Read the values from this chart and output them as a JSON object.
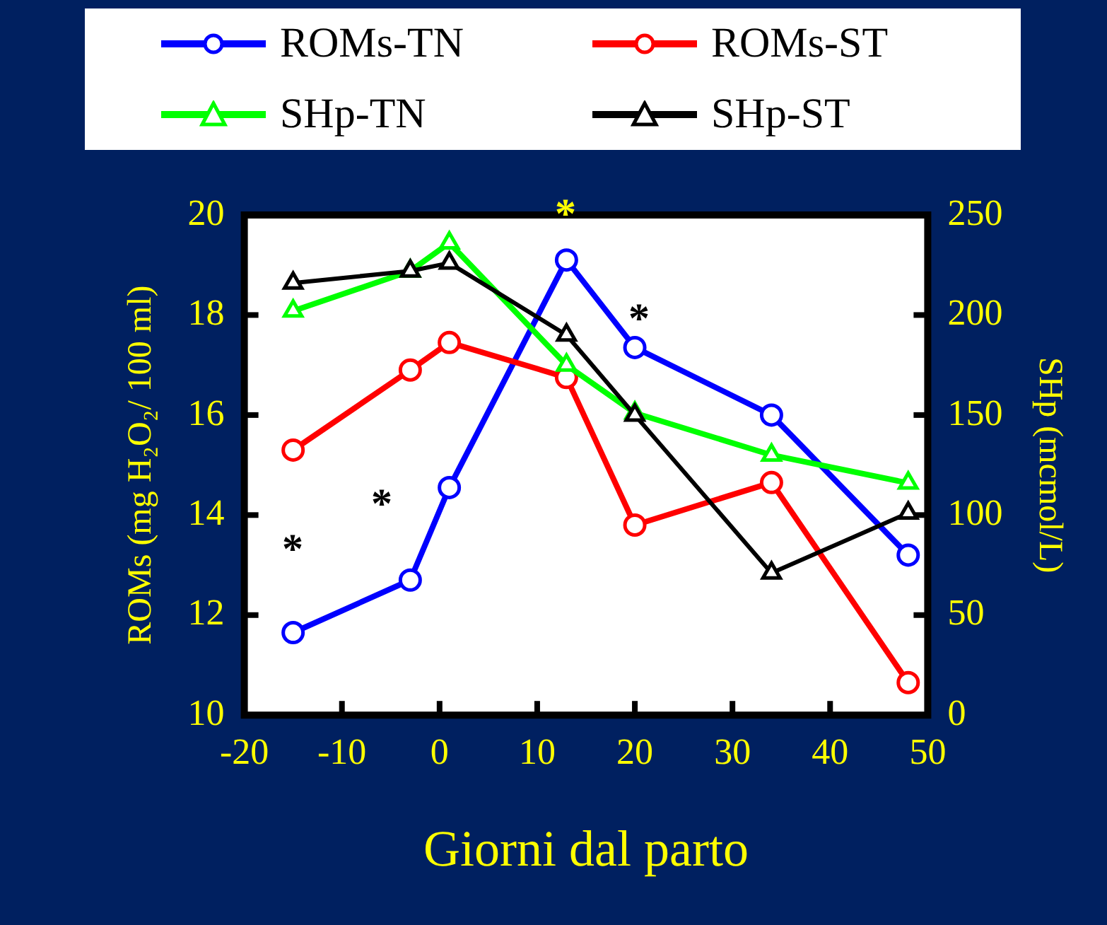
{
  "chart_data": {
    "type": "line",
    "xlabel": "Giorni dal parto",
    "ylabel": "ROMs (mg H₂O₂/ 100 ml)",
    "y2label": "SHp (mcmol/L)",
    "x": [
      -15,
      -3,
      1,
      13,
      20,
      34,
      48
    ],
    "xlim": [
      -20,
      50
    ],
    "xticks": [
      -20,
      -10,
      0,
      10,
      20,
      30,
      40,
      50
    ],
    "ylim": [
      10,
      20
    ],
    "yticks": [
      10,
      12,
      14,
      16,
      18,
      20
    ],
    "y2lim": [
      0,
      250
    ],
    "y2ticks": [
      0,
      50,
      100,
      150,
      200,
      250
    ],
    "legend": "top",
    "line_style": "solid",
    "series": [
      {
        "name": "ROMs-TN",
        "color": "#0000ff",
        "marker": "circle",
        "values": [
          11.65,
          12.7,
          14.55,
          19.1,
          17.35,
          16.0,
          13.2
        ]
      },
      {
        "name": "ROMs-ST",
        "color": "#ff0000",
        "marker": "circle",
        "values": [
          15.3,
          16.9,
          17.45,
          16.75,
          13.8,
          14.65,
          10.65
        ]
      },
      {
        "name": "SHp-TN",
        "color": "#00ff00",
        "marker": "triangle",
        "axis": "y2",
        "values": [
          202,
          222,
          236,
          175,
          151,
          130,
          116
        ]
      },
      {
        "name": "SHp-ST",
        "color": "#000000",
        "marker": "triangle",
        "axis": "y2",
        "values": [
          216,
          222,
          226,
          190,
          150,
          71,
          101
        ]
      }
    ],
    "annotations": [
      "*",
      "*",
      "*",
      "*"
    ]
  }
}
